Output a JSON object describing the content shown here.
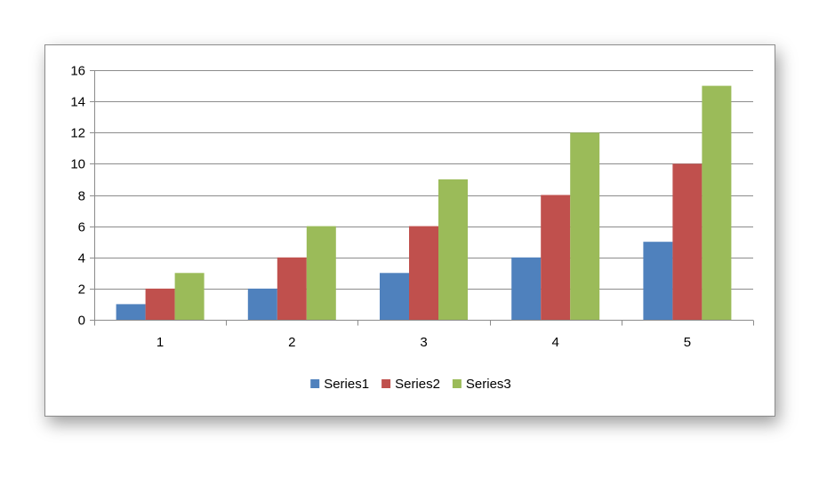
{
  "chart_data": {
    "type": "bar",
    "title": "",
    "xlabel": "",
    "ylabel": "",
    "categories": [
      "1",
      "2",
      "3",
      "4",
      "5"
    ],
    "series": [
      {
        "name": "Series1",
        "values": [
          1,
          2,
          3,
          4,
          5
        ],
        "color": "#4F81BD"
      },
      {
        "name": "Series2",
        "values": [
          2,
          4,
          6,
          8,
          10
        ],
        "color": "#C0504D"
      },
      {
        "name": "Series3",
        "values": [
          3,
          6,
          9,
          12,
          15
        ],
        "color": "#9BBB59"
      }
    ],
    "ylim": [
      0,
      16
    ],
    "yticks": [
      0,
      2,
      4,
      6,
      8,
      10,
      12,
      14,
      16
    ],
    "grid": true,
    "legend_position": "bottom"
  },
  "colors": {
    "gridline": "#8C8C8C",
    "axis": "#8C8C8C",
    "frame_border": "#8C8C8C"
  }
}
